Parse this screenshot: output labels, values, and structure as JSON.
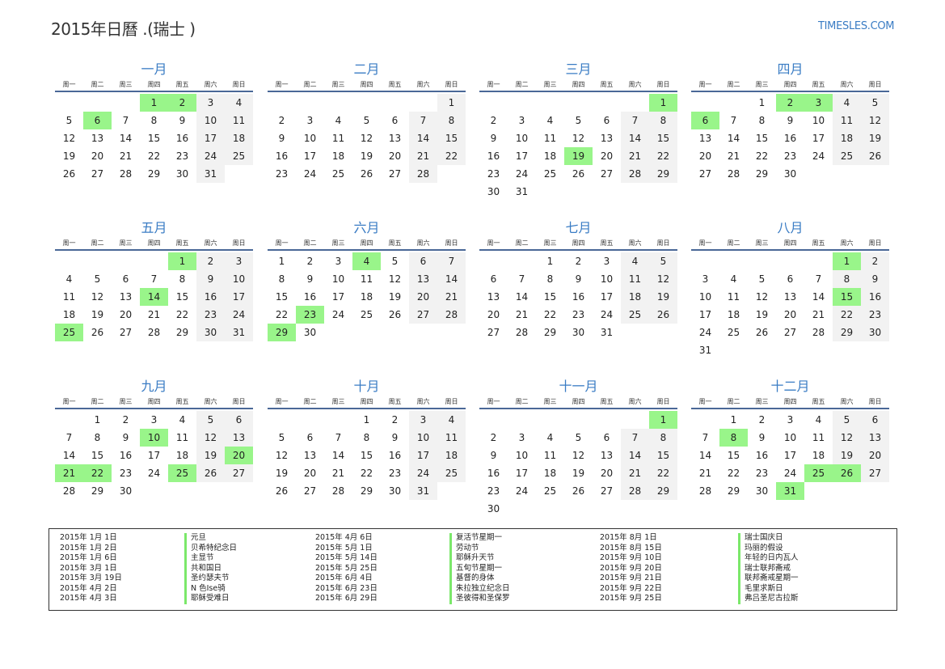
{
  "title": "2015年日曆 .(瑞士 )",
  "logo": "TIMESLES.COM",
  "weekdays": [
    "周一",
    "周二",
    "周三",
    "周四",
    "周五",
    "周六",
    "周日"
  ],
  "colors": {
    "holiday": "#99f58a",
    "weekend": "#f2f2f2",
    "accent": "#3a7cc4"
  },
  "months": [
    {
      "name": "一月",
      "offset": 3,
      "days": 31,
      "holidays": [
        1,
        2,
        6
      ]
    },
    {
      "name": "二月",
      "offset": 6,
      "days": 28,
      "holidays": []
    },
    {
      "name": "三月",
      "offset": 6,
      "days": 31,
      "holidays": [
        1,
        19
      ]
    },
    {
      "name": "四月",
      "offset": 2,
      "days": 30,
      "holidays": [
        2,
        3,
        6
      ]
    },
    {
      "name": "五月",
      "offset": 4,
      "days": 31,
      "holidays": [
        1,
        14,
        25
      ]
    },
    {
      "name": "六月",
      "offset": 0,
      "days": 30,
      "holidays": [
        4,
        23,
        29
      ]
    },
    {
      "name": "七月",
      "offset": 2,
      "days": 31,
      "holidays": []
    },
    {
      "name": "八月",
      "offset": 5,
      "days": 31,
      "holidays": [
        1,
        15
      ]
    },
    {
      "name": "九月",
      "offset": 1,
      "days": 30,
      "holidays": [
        10,
        20,
        21,
        22,
        25
      ]
    },
    {
      "name": "十月",
      "offset": 3,
      "days": 31,
      "holidays": []
    },
    {
      "name": "十一月",
      "offset": 6,
      "days": 30,
      "holidays": [
        1
      ]
    },
    {
      "name": "十二月",
      "offset": 1,
      "days": 31,
      "holidays": [
        8,
        25,
        26,
        31
      ]
    }
  ],
  "holiday_list": [
    {
      "date": "2015年 1月 1日",
      "name": "元旦"
    },
    {
      "date": "2015年 1月 2日",
      "name": "贝希特纪念日"
    },
    {
      "date": "2015年 1月 6日",
      "name": "主显节"
    },
    {
      "date": "2015年 3月 1日",
      "name": "共和国日"
    },
    {
      "date": "2015年 3月 19日",
      "name": "圣约瑟夫节"
    },
    {
      "date": "2015年 4月 2日",
      "name": "N   色Ise骑"
    },
    {
      "date": "2015年 4月 3日",
      "name": "耶稣受难日"
    },
    {
      "date": "2015年 4月 6日",
      "name": "复活节星期一"
    },
    {
      "date": "2015年 5月 1日",
      "name": "劳动节"
    },
    {
      "date": "2015年 5月 14日",
      "name": "耶稣升天节"
    },
    {
      "date": "2015年 5月 25日",
      "name": "五旬节星期一"
    },
    {
      "date": "2015年 6月 4日",
      "name": "基督的身体"
    },
    {
      "date": "2015年 6月 23日",
      "name": "朱拉独立纪念日"
    },
    {
      "date": "2015年 6月 29日",
      "name": "圣彼得和圣保罗"
    },
    {
      "date": "2015年 8月 1日",
      "name": "瑞士国庆日"
    },
    {
      "date": "2015年 8月 15日",
      "name": "玛丽的假设"
    },
    {
      "date": "2015年 9月 10日",
      "name": "年轻的日内瓦人"
    },
    {
      "date": "2015年 9月 20日",
      "name": "瑞士联邦斋戒"
    },
    {
      "date": "2015年 9月 21日",
      "name": "联邦斋戒星期一"
    },
    {
      "date": "2015年 9月 22日",
      "name": "毛里求斯日"
    },
    {
      "date": "2015年 9月 25日",
      "name": "弗吕圣尼古拉斯"
    }
  ]
}
